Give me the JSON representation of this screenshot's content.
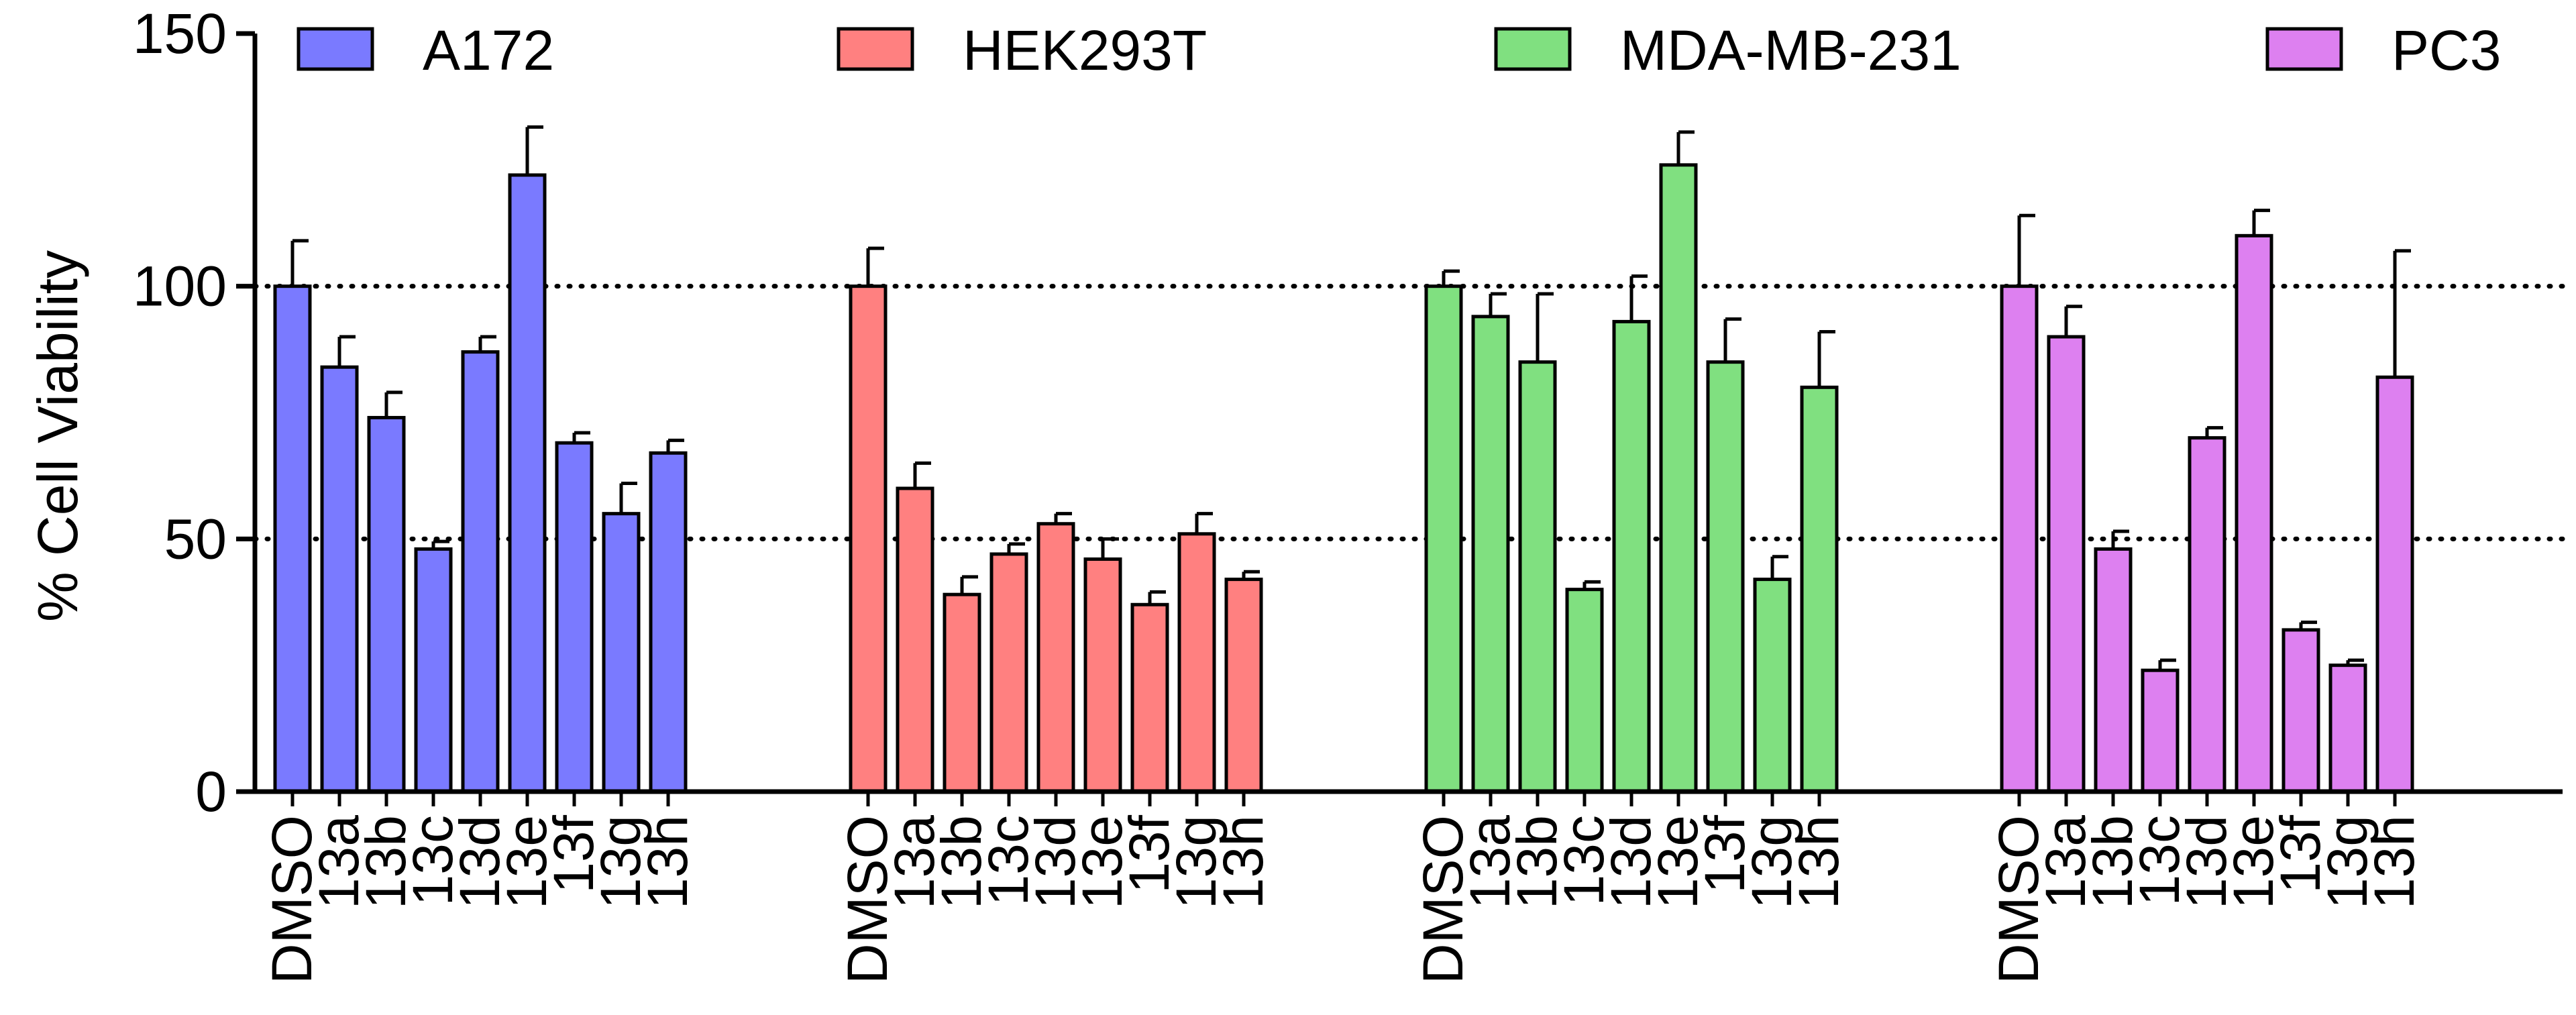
{
  "chart_data": {
    "type": "bar",
    "title": "",
    "xlabel": "",
    "ylabel": "% Cell Viability",
    "ylim": [
      0,
      150
    ],
    "yticks": [
      0,
      50,
      100,
      150
    ],
    "reference_lines": [
      50,
      100
    ],
    "grid": false,
    "legend_position": "top",
    "categories": [
      "DMSO",
      "13a",
      "13b",
      "13c",
      "13d",
      "13e",
      "13f",
      "13g",
      "13h"
    ],
    "series": [
      {
        "name": "A172",
        "color": "#7a7aff",
        "values": [
          100,
          84,
          74,
          48,
          87,
          122,
          69,
          55,
          67
        ],
        "errors": [
          9,
          6,
          5,
          1.5,
          3,
          9.5,
          2,
          6,
          2.5
        ]
      },
      {
        "name": "HEK293T",
        "color": "#ff8080",
        "values": [
          100,
          60,
          39,
          47,
          53,
          46,
          37,
          51,
          42
        ],
        "errors": [
          7.5,
          5,
          3.5,
          2,
          2,
          4,
          2.5,
          4,
          1.5
        ]
      },
      {
        "name": "MDA-MB-231",
        "color": "#80e080",
        "values": [
          100,
          94,
          85,
          40,
          93,
          124,
          85,
          42,
          80
        ],
        "errors": [
          3,
          4.5,
          13.5,
          1.5,
          9,
          6.5,
          8.5,
          4.5,
          11
        ]
      },
      {
        "name": "PC3",
        "color": "#dd80f0",
        "values": [
          100,
          90,
          48,
          24,
          70,
          110,
          32,
          25,
          82
        ],
        "errors": [
          14,
          6,
          3.5,
          2,
          2,
          5,
          1.5,
          1,
          25
        ]
      }
    ]
  }
}
